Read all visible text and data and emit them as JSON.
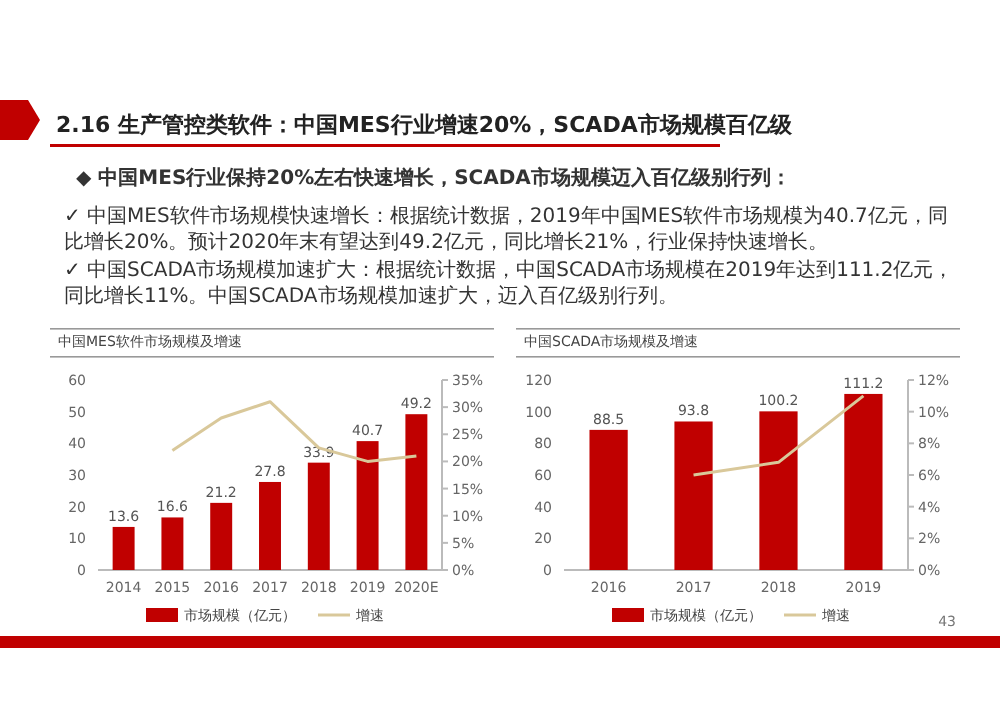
{
  "chart_data": [
    {
      "type": "other",
      "title": "2.16 生产管控类软件：中国MES行业增速20%，SCADA市场规模百亿级",
      "annotations": [
        "◆ 中国MES行业保持20%左右快速增长，SCADA市场规模迈入百亿级别行列：",
        "✓ 中国MES软件市场规模快速增长：根据统计数据，2019年中国MES软件市场规模为40.7亿元，同比增长20%。预计2020年末有望达到49.2亿元，同比增长21%，行业保持快速增长。",
        "✓ 中国SCADA市场规模加速扩大：根据统计数据，中国SCADA市场规模在2019年达到111.2亿元，同比增长11%。中国SCADA市场规模加速扩大，迈入百亿级别行列。",
        "43"
      ]
    },
    {
      "type": "bar",
      "title": "中国MES软件市场规模及增速",
      "categories": [
        "2014",
        "2015",
        "2016",
        "2017",
        "2018",
        "2019",
        "2020E"
      ],
      "ylim": [
        0,
        60
      ],
      "yticks": [
        0,
        10,
        20,
        30,
        40,
        50,
        60
      ],
      "y2lim": [
        0,
        35
      ],
      "y2ticks": [
        {
          "value": 0,
          "label": "0%"
        },
        {
          "value": 5,
          "label": "5%"
        },
        {
          "value": 10,
          "label": "10%"
        },
        {
          "value": 15,
          "label": "15%"
        },
        {
          "value": 20,
          "label": "20%"
        },
        {
          "value": 25,
          "label": "25%"
        },
        {
          "value": 30,
          "label": "30%"
        },
        {
          "value": 35,
          "label": "35%"
        }
      ],
      "legend": "bottom",
      "series": [
        {
          "name": "市场规模（亿元）",
          "type": "bar",
          "color": "#c00000",
          "values": [
            13.6,
            16.6,
            21.2,
            27.8,
            33.9,
            40.7,
            49.2
          ],
          "value_labels": [
            "13.6",
            "16.6",
            "21.2",
            "27.8",
            "33.9",
            "40.7",
            "49.2"
          ]
        },
        {
          "name": "增速",
          "type": "line",
          "axis": "y2",
          "color": "#d9c89a",
          "values": [
            null,
            22,
            28,
            31,
            22.5,
            20,
            21
          ]
        }
      ]
    },
    {
      "type": "bar",
      "title": "中国SCADA市场规模及增速",
      "categories": [
        "2016",
        "2017",
        "2018",
        "2019"
      ],
      "ylim": [
        0,
        120
      ],
      "yticks": [
        0,
        20,
        40,
        60,
        80,
        100,
        120
      ],
      "y2lim": [
        0,
        12
      ],
      "y2ticks": [
        {
          "value": 0,
          "label": "0%"
        },
        {
          "value": 2,
          "label": "2%"
        },
        {
          "value": 4,
          "label": "4%"
        },
        {
          "value": 6,
          "label": "6%"
        },
        {
          "value": 8,
          "label": "8%"
        },
        {
          "value": 10,
          "label": "10%"
        },
        {
          "value": 12,
          "label": "12%"
        }
      ],
      "legend": "bottom",
      "series": [
        {
          "name": "市场规模（亿元）",
          "type": "bar",
          "color": "#c00000",
          "values": [
            88.5,
            93.8,
            100.2,
            111.2
          ],
          "value_labels": [
            "88.5",
            "93.8",
            "100.2",
            "111.2"
          ]
        },
        {
          "name": "增速",
          "type": "line",
          "axis": "y2",
          "color": "#d9c89a",
          "values": [
            null,
            6,
            6.8,
            11
          ]
        }
      ]
    }
  ]
}
